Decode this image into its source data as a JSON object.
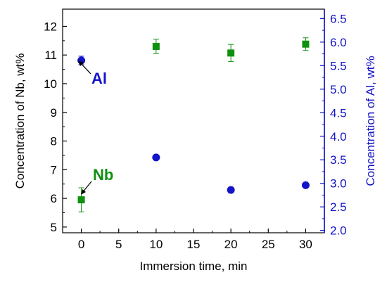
{
  "chart_data": {
    "type": "scatter",
    "title": "",
    "xlabel": "Immersion time, min",
    "ylabel_left": "Concentration of Nb, wt%",
    "ylabel_right": "Concentration of Al, wt%",
    "xlim": [
      -2.5,
      32.5
    ],
    "ylim_left": [
      4.8,
      12.6
    ],
    "ylim_right": [
      1.95,
      6.7
    ],
    "x_ticks": [
      "0",
      "5",
      "10",
      "15",
      "20",
      "25",
      "30"
    ],
    "y_left_ticks": [
      "5",
      "6",
      "7",
      "8",
      "9",
      "10",
      "11",
      "12"
    ],
    "y_right_ticks": [
      "2.0",
      "2.5",
      "3.0",
      "3.5",
      "4.0",
      "4.5",
      "5.0",
      "5.5",
      "6.0",
      "6.5"
    ],
    "grid": false,
    "series": [
      {
        "name": "Nb",
        "axis": "left",
        "marker": "square",
        "color": "#109010",
        "points": [
          {
            "x": 0,
            "y": 5.95,
            "err": 0.42
          },
          {
            "x": 10,
            "y": 11.3,
            "err": 0.25
          },
          {
            "x": 20,
            "y": 11.07,
            "err": 0.3
          },
          {
            "x": 30,
            "y": 11.38,
            "err": 0.22
          }
        ]
      },
      {
        "name": "Al",
        "axis": "right",
        "marker": "circle",
        "color": "#1414c8",
        "points": [
          {
            "x": 0,
            "y": 5.61,
            "err": 0.09
          },
          {
            "x": 10,
            "y": 3.55,
            "err": 0
          },
          {
            "x": 20,
            "y": 2.86,
            "err": 0
          },
          {
            "x": 30,
            "y": 2.96,
            "err": 0
          }
        ]
      }
    ],
    "annotations": [
      {
        "text": "Al",
        "color": "#1414c8"
      },
      {
        "text": "Nb",
        "color": "#109010"
      }
    ]
  }
}
